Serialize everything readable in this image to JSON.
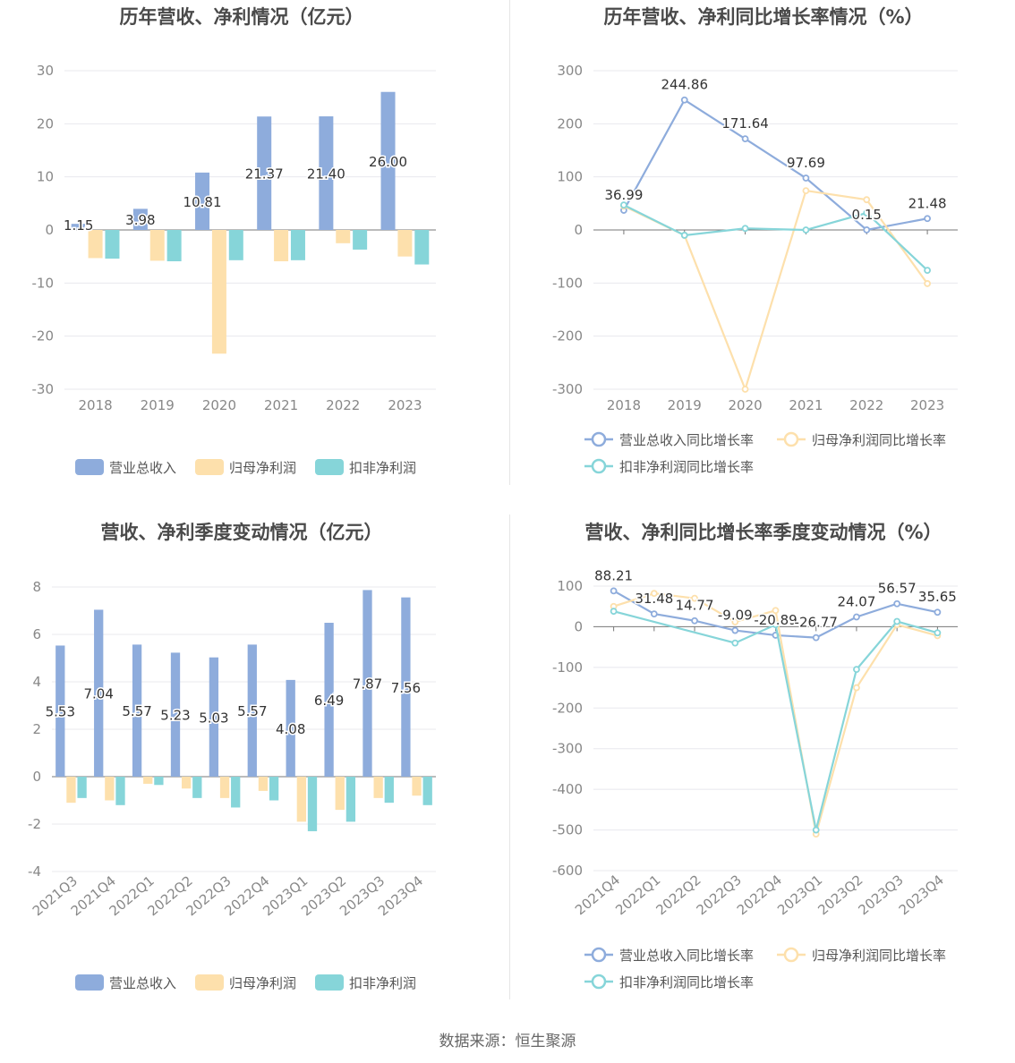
{
  "colors": {
    "revenue": "#8eacdc",
    "parent_net": "#fde0ac",
    "deducted_net": "#86d5d9",
    "grid": "#e8e8ee",
    "axis": "#777777",
    "tick": "#888888",
    "title": "#4a4a4a",
    "label": "#333333"
  },
  "source": "数据来源：恒生聚源",
  "chart_data": [
    {
      "type": "bar",
      "title": "历年营收、净利情况（亿元）",
      "categories": [
        "2018",
        "2019",
        "2020",
        "2021",
        "2022",
        "2023"
      ],
      "ylim": [
        -30,
        30
      ],
      "yticks": [
        "30",
        "20",
        "10",
        "0",
        "-10",
        "-20",
        "-30"
      ],
      "series": [
        {
          "name": "营业总收入",
          "values": [
            1.15,
            3.98,
            10.81,
            21.37,
            21.4,
            26.0
          ],
          "labels": [
            "1.15",
            "3.98",
            "10.81",
            "21.37",
            "21.40",
            "26.00"
          ]
        },
        {
          "name": "归母净利润",
          "values": [
            -5.3,
            -5.8,
            -23.3,
            -5.9,
            -2.5,
            -5.0
          ]
        },
        {
          "name": "扣非净利润",
          "values": [
            -5.4,
            -5.9,
            -5.7,
            -5.7,
            -3.7,
            -6.5
          ]
        }
      ],
      "legend": [
        "营业总收入",
        "归母净利润",
        "扣非净利润"
      ]
    },
    {
      "type": "line",
      "title": "历年营收、净利同比增长率情况（%）",
      "categories": [
        "2018",
        "2019",
        "2020",
        "2021",
        "2022",
        "2023"
      ],
      "ylim": [
        -300,
        300
      ],
      "yticks": [
        "300",
        "200",
        "100",
        "0",
        "-100",
        "-200",
        "-300"
      ],
      "series": [
        {
          "name": "营业总收入同比增长率",
          "values": [
            36.99,
            244.86,
            171.64,
            97.69,
            0.15,
            21.48
          ],
          "labels": [
            "36.99",
            "244.86",
            "171.64",
            "97.69",
            "0.15",
            "21.48"
          ]
        },
        {
          "name": "归母净利润同比增长率",
          "values": [
            45,
            -10,
            -300,
            74,
            57,
            -101
          ]
        },
        {
          "name": "扣非净利润同比增长率",
          "values": [
            47,
            -10,
            3,
            0,
            32,
            -76
          ]
        }
      ],
      "legend": [
        "营业总收入同比增长率",
        "归母净利润同比增长率",
        "扣非净利润同比增长率"
      ]
    },
    {
      "type": "bar",
      "title": "营收、净利季度变动情况（亿元）",
      "categories": [
        "2021Q3",
        "2021Q4",
        "2022Q1",
        "2022Q2",
        "2022Q3",
        "2022Q4",
        "2023Q1",
        "2023Q2",
        "2023Q3",
        "2023Q4"
      ],
      "ylim": [
        -4,
        8
      ],
      "yticks": [
        "8",
        "6",
        "4",
        "2",
        "0",
        "-2",
        "-4"
      ],
      "series": [
        {
          "name": "营业总收入",
          "values": [
            5.53,
            7.04,
            5.57,
            5.23,
            5.03,
            5.57,
            4.08,
            6.49,
            7.87,
            7.56
          ],
          "labels": [
            "5.53",
            "7.04",
            "5.57",
            "5.23",
            "5.03",
            "5.57",
            "4.08",
            "6.49",
            "7.87",
            "7.56"
          ]
        },
        {
          "name": "归母净利润",
          "values": [
            -1.1,
            -1.0,
            -0.3,
            -0.5,
            -0.9,
            -0.6,
            -1.9,
            -1.4,
            -0.9,
            -0.8
          ]
        },
        {
          "name": "扣非净利润",
          "values": [
            -0.9,
            -1.2,
            -0.35,
            -0.9,
            -1.3,
            -1.0,
            -2.3,
            -1.9,
            -1.1,
            -1.2
          ]
        }
      ],
      "legend": [
        "营业总收入",
        "归母净利润",
        "扣非净利润"
      ]
    },
    {
      "type": "line",
      "title": "营收、净利同比增长率季度变动情况（%）",
      "categories": [
        "2021Q4",
        "2022Q1",
        "2022Q2",
        "2022Q3",
        "2022Q4",
        "2023Q1",
        "2023Q2",
        "2023Q3",
        "2023Q4"
      ],
      "ylim": [
        -600,
        100
      ],
      "yticks": [
        "100",
        "0",
        "-100",
        "-200",
        "-300",
        "-400",
        "-500",
        "-600"
      ],
      "series": [
        {
          "name": "营业总收入同比增长率",
          "values": [
            88.21,
            31.48,
            14.77,
            -9.09,
            -20.89,
            -26.77,
            24.07,
            56.57,
            35.65
          ],
          "labels": [
            "88.21",
            "31.48",
            "14.77",
            "-9.09",
            "-20.89",
            "-26.77",
            "24.07",
            "56.57",
            "35.65"
          ]
        },
        {
          "name": "归母净利润同比增长率",
          "values": [
            50,
            82,
            70,
            12,
            40,
            -510,
            -150,
            5,
            -22
          ]
        },
        {
          "name": "扣非净利润同比增长率",
          "values": [
            38,
            null,
            null,
            -40,
            5,
            -500,
            -105,
            13,
            -15
          ]
        }
      ],
      "legend": [
        "营业总收入同比增长率",
        "归母净利润同比增长率",
        "扣非净利润同比增长率"
      ]
    }
  ]
}
